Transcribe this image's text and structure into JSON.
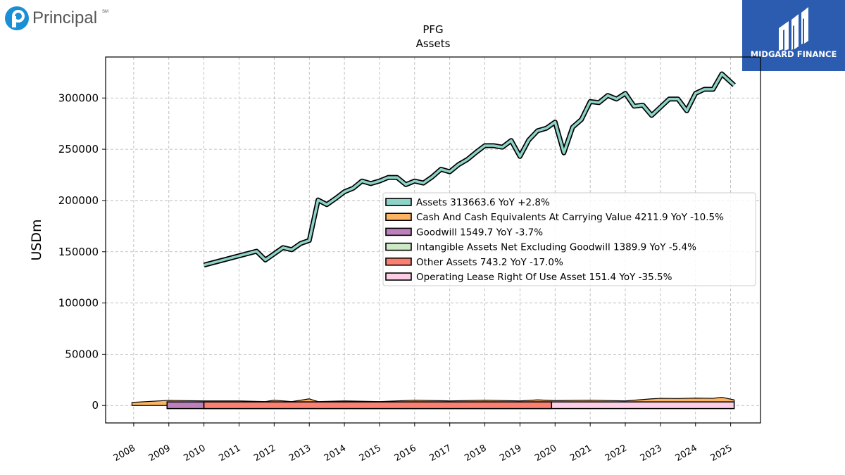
{
  "brand": {
    "left_logo_text": "Principal",
    "left_logo_mark": "SM",
    "right_logo_text": "MIDGARD FINANCE"
  },
  "chart_data": {
    "type": "area",
    "title": "PFG",
    "subtitle": "Assets",
    "ylabel": "USDm",
    "xlabel": "",
    "ylim": [
      -17000,
      340000
    ],
    "xlim": [
      2007.2,
      2025.85
    ],
    "yticks": [
      0,
      50000,
      100000,
      150000,
      200000,
      250000,
      300000
    ],
    "xticks": [
      "2008",
      "2009",
      "2010",
      "2011",
      "2012",
      "2013",
      "2014",
      "2015",
      "2016",
      "2017",
      "2018",
      "2019",
      "2020",
      "2021",
      "2022",
      "2023",
      "2024",
      "2025"
    ],
    "grid": true,
    "legend_position": "center-right",
    "series": [
      {
        "name": "Assets",
        "legend": "Assets  313663.6 YoY +2.8%",
        "color": "#8dd3c7",
        "kind": "line",
        "points": [
          [
            2010.0,
            137000
          ],
          [
            2011.5,
            150500
          ],
          [
            2011.75,
            142000
          ],
          [
            2012.0,
            148000
          ],
          [
            2012.25,
            154000
          ],
          [
            2012.5,
            152000
          ],
          [
            2012.75,
            158000
          ],
          [
            2013.0,
            161000
          ],
          [
            2013.25,
            200500
          ],
          [
            2013.5,
            196000
          ],
          [
            2013.75,
            202000
          ],
          [
            2014.0,
            208500
          ],
          [
            2014.25,
            212000
          ],
          [
            2014.5,
            219000
          ],
          [
            2014.75,
            216500
          ],
          [
            2015.0,
            219000
          ],
          [
            2015.25,
            222500
          ],
          [
            2015.5,
            222500
          ],
          [
            2015.75,
            215500
          ],
          [
            2016.0,
            219000
          ],
          [
            2016.25,
            217000
          ],
          [
            2016.5,
            223000
          ],
          [
            2016.75,
            230500
          ],
          [
            2017.0,
            228000
          ],
          [
            2017.25,
            235000
          ],
          [
            2017.5,
            240000
          ],
          [
            2017.75,
            247000
          ],
          [
            2018.0,
            253500
          ],
          [
            2018.25,
            253500
          ],
          [
            2018.5,
            252000
          ],
          [
            2018.75,
            258500
          ],
          [
            2019.0,
            243000
          ],
          [
            2019.25,
            259000
          ],
          [
            2019.5,
            268000
          ],
          [
            2019.75,
            270500
          ],
          [
            2020.0,
            276500
          ],
          [
            2020.25,
            246500
          ],
          [
            2020.5,
            271500
          ],
          [
            2020.75,
            279000
          ],
          [
            2021.0,
            296500
          ],
          [
            2021.25,
            295500
          ],
          [
            2021.5,
            302500
          ],
          [
            2021.75,
            299000
          ],
          [
            2022.0,
            304500
          ],
          [
            2022.25,
            292000
          ],
          [
            2022.5,
            293000
          ],
          [
            2022.75,
            283000
          ],
          [
            2023.0,
            291000
          ],
          [
            2023.25,
            299000
          ],
          [
            2023.5,
            299000
          ],
          [
            2023.75,
            287500
          ],
          [
            2024.0,
            304500
          ],
          [
            2024.25,
            308500
          ],
          [
            2024.5,
            308500
          ],
          [
            2024.75,
            323500
          ],
          [
            2025.1,
            312500
          ]
        ]
      },
      {
        "name": "Cash And Cash Equivalents At Carrying Value",
        "legend": "Cash And Cash Equivalents At Carrying Value  4211.9 YoY -10.5%",
        "color": "#fdb462",
        "kind": "area",
        "points": [
          [
            2007.95,
            3000
          ],
          [
            2009.0,
            5000
          ],
          [
            2010.0,
            4500
          ],
          [
            2011.0,
            4500
          ],
          [
            2011.75,
            3800
          ],
          [
            2012.0,
            5200
          ],
          [
            2012.5,
            3800
          ],
          [
            2013.0,
            6500
          ],
          [
            2013.25,
            3800
          ],
          [
            2014.0,
            4500
          ],
          [
            2015.0,
            3800
          ],
          [
            2016.0,
            5200
          ],
          [
            2017.0,
            4500
          ],
          [
            2018.0,
            5200
          ],
          [
            2019.0,
            4500
          ],
          [
            2019.5,
            5500
          ],
          [
            2020.0,
            4800
          ],
          [
            2021.0,
            5200
          ],
          [
            2022.0,
            4500
          ],
          [
            2022.75,
            6500
          ],
          [
            2023.0,
            7000
          ],
          [
            2023.5,
            6800
          ],
          [
            2024.0,
            7200
          ],
          [
            2024.5,
            7000
          ],
          [
            2024.75,
            8000
          ],
          [
            2025.1,
            5500
          ]
        ],
        "base": 0
      },
      {
        "name": "Goodwill",
        "legend": "Goodwill  1549.7 YoY -3.7%",
        "color": "#bc80bd",
        "kind": "band",
        "x_range": [
          2008.95,
          2010.0
        ]
      },
      {
        "name": "Intangible Assets Net Excluding Goodwill",
        "legend": "Intangible Assets Net Excluding Goodwill  1389.9 YoY -5.4%",
        "color": "#ccebc5",
        "kind": "band",
        "x_range": [
          2010.0,
          2019.9
        ]
      },
      {
        "name": "Other Assets",
        "legend": "Other Assets  743.2 YoY -17.0%",
        "color": "#fb8072",
        "kind": "band",
        "x_range": [
          2010.0,
          2019.9
        ]
      },
      {
        "name": "Operating Lease Right Of Use Asset",
        "legend": "Operating Lease Right Of Use Asset  151.4 YoY -35.5%",
        "color": "#fccde5",
        "kind": "band",
        "x_range": [
          2019.9,
          2025.1
        ]
      }
    ]
  }
}
